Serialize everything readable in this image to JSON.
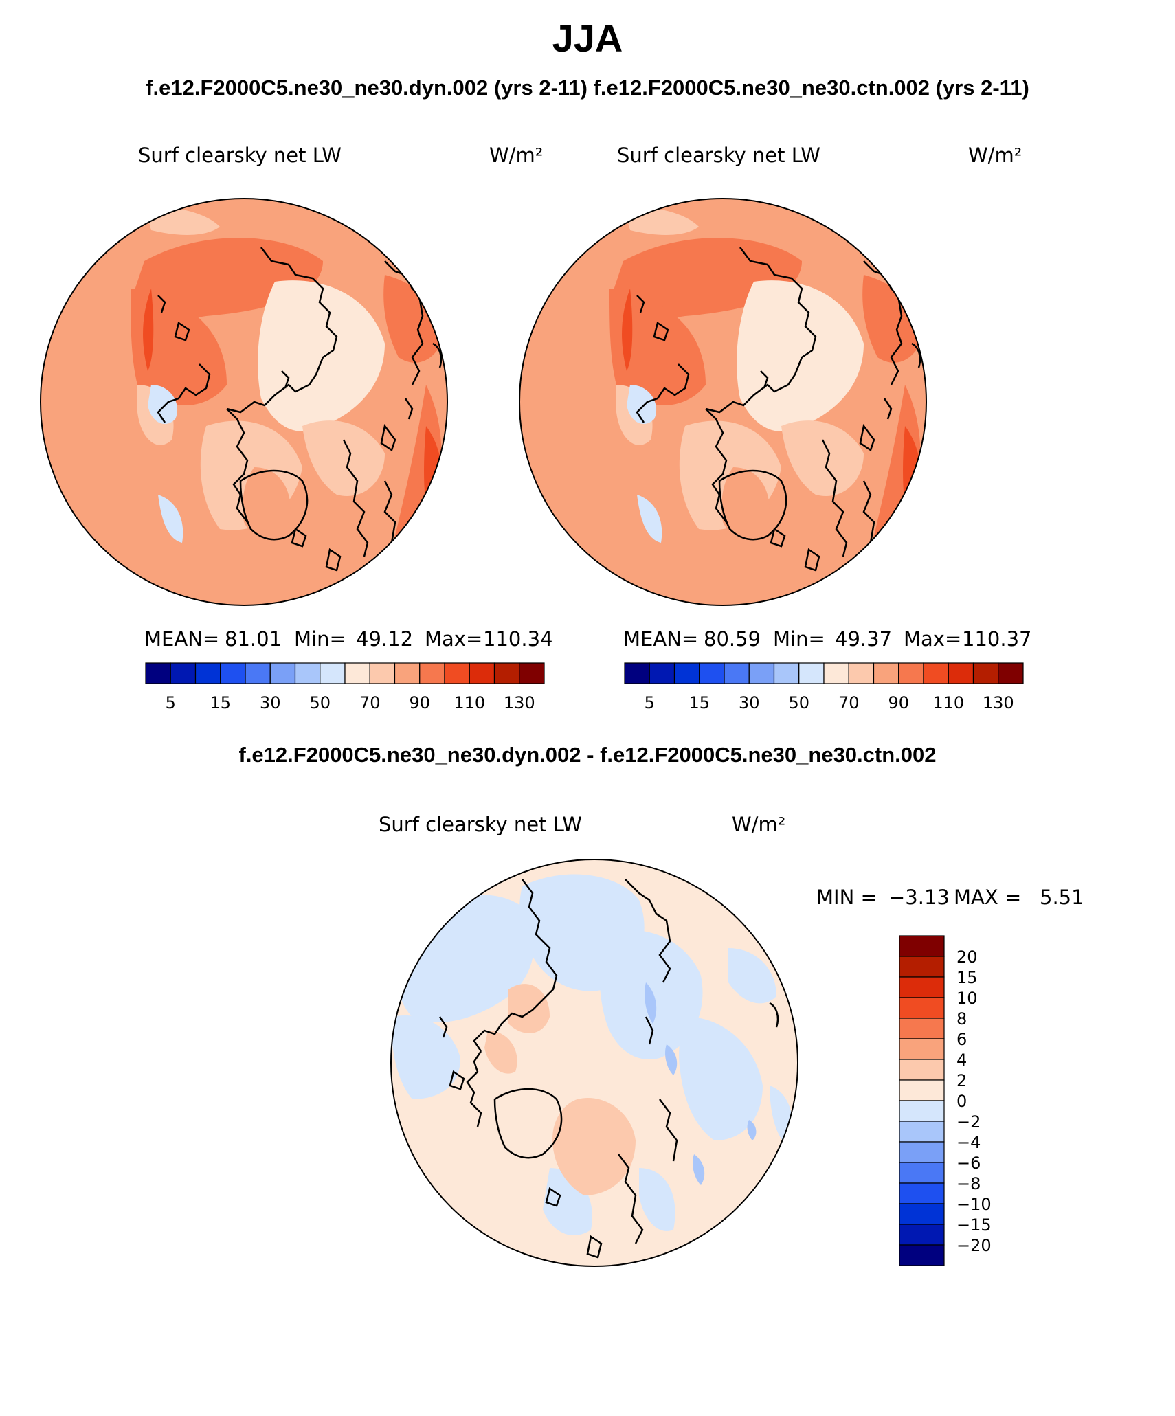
{
  "title": "JJA",
  "subtitle": "f.e12.F2000C5.ne30_ne30.dyn.002 (yrs 2-11)  f.e12.F2000C5.ne30_ne30.ctn.002 (yrs 2-11)",
  "diff_title": "f.e12.F2000C5.ne30_ne30.dyn.002 - f.e12.F2000C5.ne30_ne30.ctn.002",
  "chart_data": [
    {
      "type": "heatmap",
      "projection": "north-polar-stereographic",
      "variable": "Surf clearsky net LW",
      "units": "W/m²",
      "case": "f.e12.F2000C5.ne30_ne30.dyn.002 (yrs 2-11)",
      "stats": {
        "mean_label": "MEAN=",
        "mean": "81.01",
        "min_label": "Min=",
        "min": "49.12",
        "max_label": "Max=",
        "max": "110.34"
      },
      "colorbar_ticks": [
        "5",
        "15",
        "30",
        "50",
        "70",
        "90",
        "110",
        "130"
      ],
      "colorbar_colors": [
        "#00007f",
        "#0018b2",
        "#0033d6",
        "#1e50f0",
        "#4a78f5",
        "#7aa0f7",
        "#a9c6fa",
        "#d5e6fc",
        "#fde8d8",
        "#fcc9ad",
        "#f9a37c",
        "#f6784e",
        "#f04c22",
        "#dc2c0a",
        "#b41e00",
        "#7f0000"
      ]
    },
    {
      "type": "heatmap",
      "projection": "north-polar-stereographic",
      "variable": "Surf clearsky net LW",
      "units": "W/m²",
      "case": "f.e12.F2000C5.ne30_ne30.ctn.002 (yrs 2-11)",
      "stats": {
        "mean_label": "MEAN=",
        "mean": "80.59",
        "min_label": "Min=",
        "min": "49.37",
        "max_label": "Max=",
        "max": "110.37"
      },
      "colorbar_ticks": [
        "5",
        "15",
        "30",
        "50",
        "70",
        "90",
        "110",
        "130"
      ],
      "colorbar_colors": [
        "#00007f",
        "#0018b2",
        "#0033d6",
        "#1e50f0",
        "#4a78f5",
        "#7aa0f7",
        "#a9c6fa",
        "#d5e6fc",
        "#fde8d8",
        "#fcc9ad",
        "#f9a37c",
        "#f6784e",
        "#f04c22",
        "#dc2c0a",
        "#b41e00",
        "#7f0000"
      ]
    },
    {
      "type": "heatmap",
      "projection": "north-polar-stereographic",
      "variable": "Surf clearsky net LW",
      "units": "W/m²",
      "case": "difference dyn.002 - ctn.002",
      "stats": {
        "min_label": "MIN =",
        "min": "−3.13",
        "max_label": "MAX =",
        "max": "5.51"
      },
      "colorbar_ticks": [
        "20",
        "15",
        "10",
        "8",
        "6",
        "4",
        "2",
        "0",
        "−2",
        "−4",
        "−6",
        "−8",
        "−10",
        "−15",
        "−20"
      ],
      "colorbar_colors": [
        "#7f0000",
        "#b41e00",
        "#dc2c0a",
        "#f04c22",
        "#f6784e",
        "#f9a37c",
        "#fcc9ad",
        "#fde8d8",
        "#d5e6fc",
        "#a9c6fa",
        "#7aa0f7",
        "#4a78f5",
        "#1e50f0",
        "#0033d6",
        "#0018b2",
        "#00007f"
      ]
    }
  ]
}
